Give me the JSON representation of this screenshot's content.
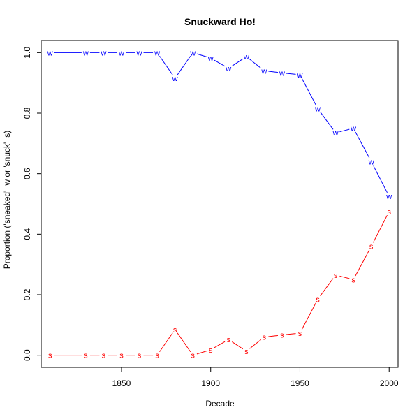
{
  "chart_data": {
    "type": "line",
    "title": "Snuckward Ho!",
    "xlabel": "Decade",
    "ylabel": "Proportion ('sneaked'=w or 'snuck'=s)",
    "xlim": [
      1805,
      2005
    ],
    "ylim": [
      -0.04,
      1.04
    ],
    "xticks": [
      1850,
      1900,
      1950,
      2000
    ],
    "yticks": [
      0.0,
      0.2,
      0.4,
      0.6,
      0.8,
      1.0
    ],
    "ytick_labels": [
      "0.0",
      "0.2",
      "0.4",
      "0.6",
      "0.8",
      "1.0"
    ],
    "grid": false,
    "series": [
      {
        "color": "#0000ff",
        "marker": "w",
        "points": [
          {
            "x": 1810,
            "y": 1.0,
            "connect": false
          },
          {
            "x": 1830,
            "y": 1.0,
            "connect": true
          },
          {
            "x": 1840,
            "y": 1.0,
            "connect": true
          },
          {
            "x": 1850,
            "y": 1.0,
            "connect": true
          },
          {
            "x": 1860,
            "y": 1.0,
            "connect": true
          },
          {
            "x": 1870,
            "y": 1.0,
            "connect": true
          },
          {
            "x": 1880,
            "y": 0.915,
            "connect": true
          },
          {
            "x": 1890,
            "y": 1.0,
            "connect": true
          },
          {
            "x": 1900,
            "y": 0.982,
            "connect": true
          },
          {
            "x": 1910,
            "y": 0.948,
            "connect": true
          },
          {
            "x": 1920,
            "y": 0.987,
            "connect": true
          },
          {
            "x": 1930,
            "y": 0.94,
            "connect": true
          },
          {
            "x": 1940,
            "y": 0.933,
            "connect": true
          },
          {
            "x": 1950,
            "y": 0.927,
            "connect": true
          },
          {
            "x": 1960,
            "y": 0.815,
            "connect": true
          },
          {
            "x": 1970,
            "y": 0.735,
            "connect": true
          },
          {
            "x": 1980,
            "y": 0.75,
            "connect": true
          },
          {
            "x": 1990,
            "y": 0.64,
            "connect": true
          },
          {
            "x": 2000,
            "y": 0.525,
            "connect": true
          }
        ]
      },
      {
        "color": "#ff0000",
        "marker": "s",
        "points": [
          {
            "x": 1810,
            "y": 0.0,
            "connect": false
          },
          {
            "x": 1830,
            "y": 0.0,
            "connect": true
          },
          {
            "x": 1840,
            "y": 0.0,
            "connect": true
          },
          {
            "x": 1850,
            "y": 0.0,
            "connect": true
          },
          {
            "x": 1860,
            "y": 0.0,
            "connect": true
          },
          {
            "x": 1870,
            "y": 0.0,
            "connect": true
          },
          {
            "x": 1880,
            "y": 0.085,
            "connect": true
          },
          {
            "x": 1890,
            "y": 0.0,
            "connect": true
          },
          {
            "x": 1900,
            "y": 0.018,
            "connect": true
          },
          {
            "x": 1910,
            "y": 0.052,
            "connect": true
          },
          {
            "x": 1920,
            "y": 0.013,
            "connect": true
          },
          {
            "x": 1930,
            "y": 0.06,
            "connect": true
          },
          {
            "x": 1940,
            "y": 0.067,
            "connect": true
          },
          {
            "x": 1950,
            "y": 0.073,
            "connect": true
          },
          {
            "x": 1960,
            "y": 0.185,
            "connect": true
          },
          {
            "x": 1970,
            "y": 0.265,
            "connect": true
          },
          {
            "x": 1980,
            "y": 0.25,
            "connect": true
          },
          {
            "x": 1990,
            "y": 0.36,
            "connect": true
          },
          {
            "x": 2000,
            "y": 0.475,
            "connect": true
          }
        ]
      }
    ]
  }
}
